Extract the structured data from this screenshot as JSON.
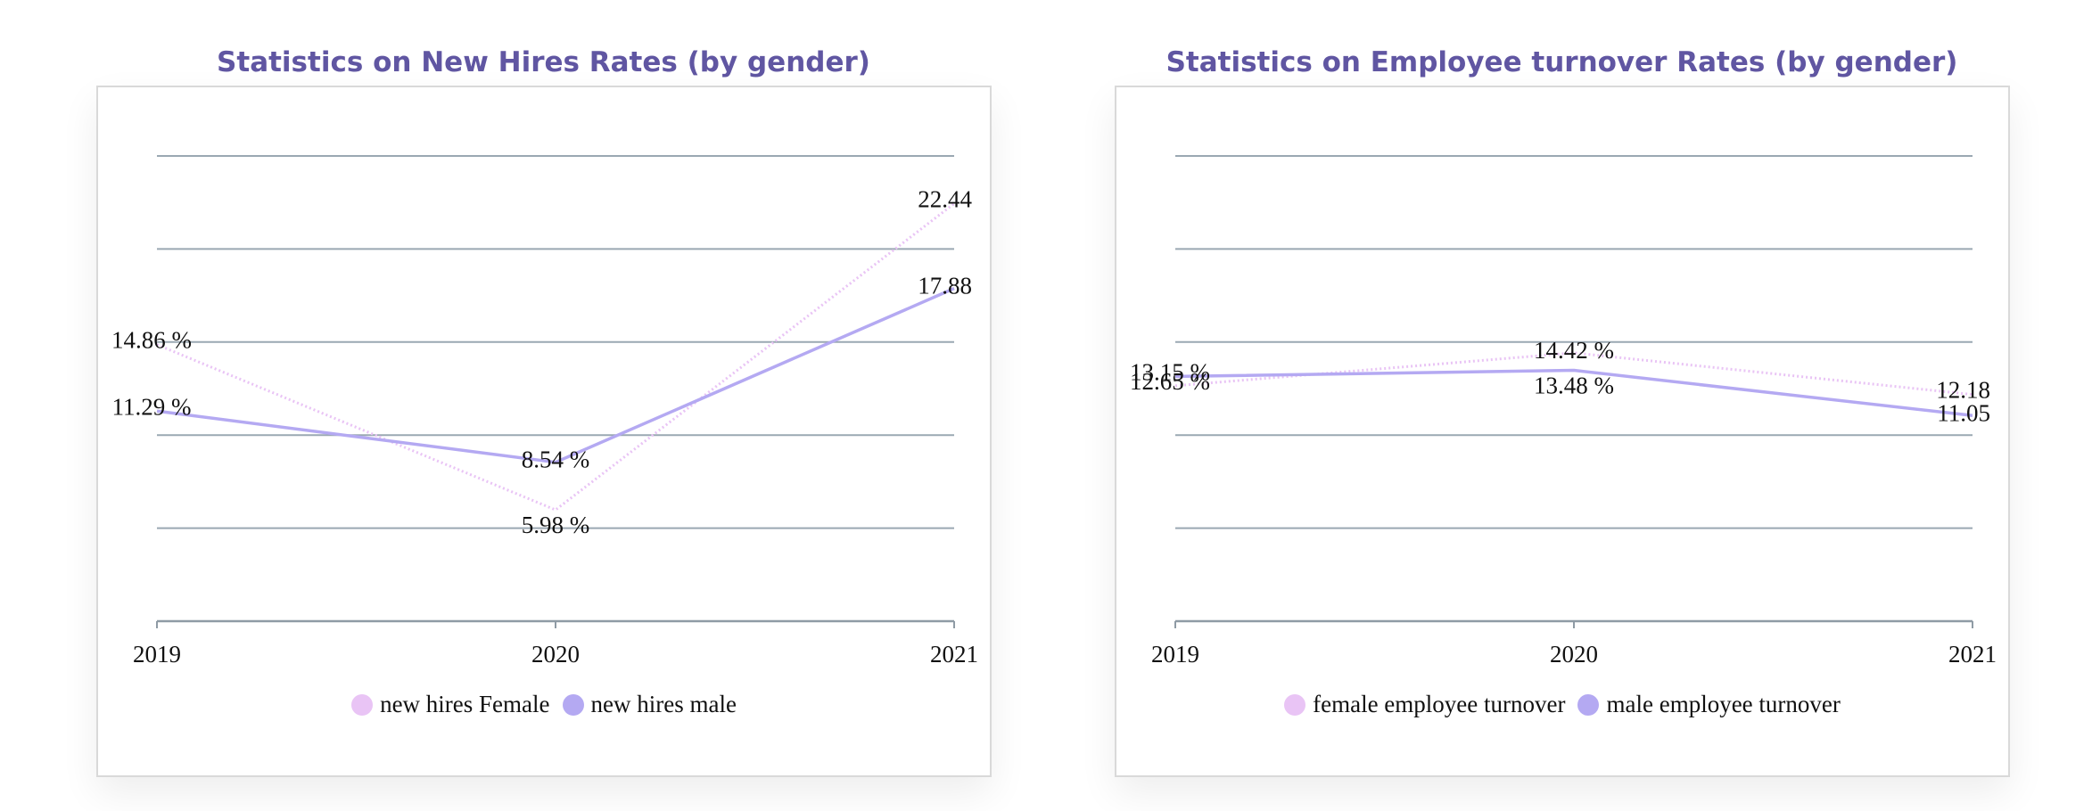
{
  "chart_data": [
    {
      "type": "line",
      "title": "Statistics on New Hires Rates (by gender)",
      "categories": [
        "2019",
        "2020",
        "2021"
      ],
      "ylim": [
        0,
        25
      ],
      "grid": true,
      "legend_position": "bottom",
      "series": [
        {
          "name": "new hires Female",
          "values": [
            14.86,
            5.98,
            22.44
          ],
          "labels": [
            "14.86 %",
            "5.98 %",
            "22.44"
          ],
          "color": "#e9c4f5",
          "style": "dotted"
        },
        {
          "name": "new hires male",
          "values": [
            11.29,
            8.54,
            17.88
          ],
          "labels": [
            "11.29 %",
            "8.54 %",
            "17.88"
          ],
          "color": "#b4a9f2",
          "style": "solid"
        }
      ]
    },
    {
      "type": "line",
      "title": "Statistics on Employee turnover Rates (by gender)",
      "categories": [
        "2019",
        "2020",
        "2021"
      ],
      "ylim": [
        0,
        25
      ],
      "grid": true,
      "legend_position": "bottom",
      "series": [
        {
          "name": "female employee turnover",
          "values": [
            12.65,
            14.42,
            12.18
          ],
          "labels": [
            "12.65 %",
            "14.42 %",
            "12.18"
          ],
          "color": "#e9c4f5",
          "style": "dotted"
        },
        {
          "name": "male employee turnover",
          "values": [
            13.15,
            13.48,
            11.05
          ],
          "labels": [
            "13.15 %",
            "13.48 %",
            "11.05"
          ],
          "color": "#b4a9f2",
          "style": "solid"
        }
      ]
    }
  ]
}
